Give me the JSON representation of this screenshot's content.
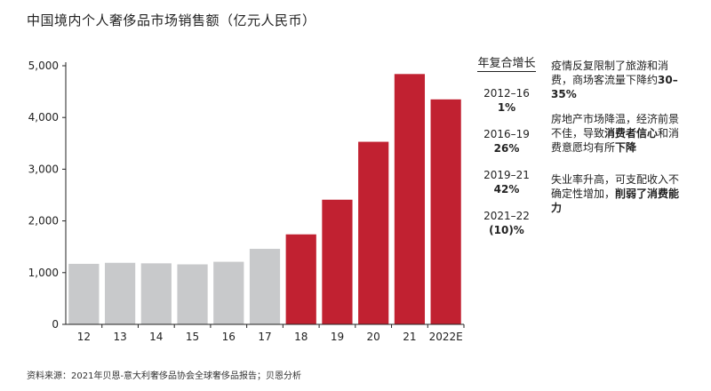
{
  "chart_data": {
    "type": "bar",
    "title": "中国境内个人奢侈品市场销售额（亿元人民币）",
    "categories": [
      "12",
      "13",
      "14",
      "15",
      "16",
      "17",
      "18",
      "19",
      "20",
      "21",
      "2022E"
    ],
    "values": [
      1170,
      1190,
      1180,
      1160,
      1210,
      1460,
      1740,
      2410,
      3530,
      4840,
      4350
    ],
    "highlight_from_index": 6,
    "ylim": [
      0,
      5000
    ],
    "yticks": [
      0,
      1000,
      2000,
      3000,
      4000,
      5000
    ],
    "ytick_labels": [
      "0",
      "1,000",
      "2,000",
      "3,000",
      "4,000",
      "5,000"
    ],
    "colors": {
      "gray": "#c8c9cb",
      "red": "#c12131"
    },
    "grid": false,
    "xlabel": "",
    "ylabel": ""
  },
  "cagr": {
    "header": "年复合增长",
    "items": [
      {
        "period": "2012–16",
        "value": "1%"
      },
      {
        "period": "2016–19",
        "value": "26%"
      },
      {
        "period": "2019–21",
        "value": "42%"
      },
      {
        "period": "2021–22",
        "value": "(10)%"
      }
    ]
  },
  "notes": [
    {
      "plain": "疫情反复限制了旅游和消费，商场客流量下降约",
      "bold": "30–35%",
      "tail": ""
    },
    {
      "plain": "房地产市场降温，经济前景不佳，导致",
      "bold": "消费者信心",
      "tail": "和消费意愿均有所",
      "bold2": "下降"
    },
    {
      "plain": "失业率升高，可支配收入不确定性增加，",
      "bold": "削弱了消费能力",
      "tail": ""
    }
  ],
  "source": "资料来源：2021年贝恩-意大利奢侈品协会全球奢侈品报告；贝恩分析"
}
